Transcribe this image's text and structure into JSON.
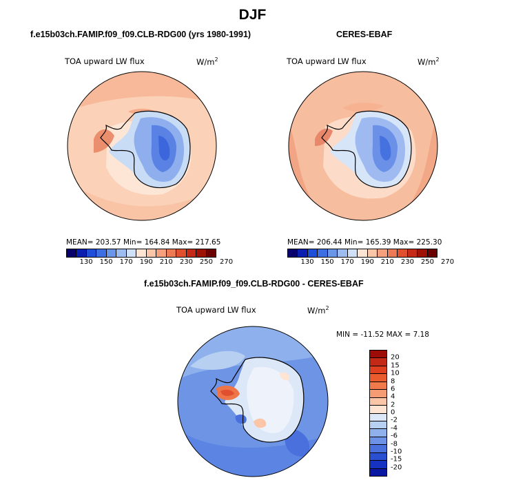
{
  "title": "DJF",
  "panels": {
    "model": {
      "header": "f.e15b03ch.FAMIP.f09_f09.CLB-RDG00 (yrs 1980-1991)",
      "field": "TOA upward LW flux",
      "units": "W/m",
      "units_exp": "2",
      "stats": "MEAN= 203.57   Min= 164.84   Max= 217.65"
    },
    "obs": {
      "header": "CERES-EBAF",
      "field": "TOA upward LW flux",
      "units": "W/m",
      "units_exp": "2",
      "stats": "MEAN= 206.44   Min= 165.39   Max= 225.30"
    },
    "diff": {
      "header": "f.e15b03ch.FAMIP.f09_f09.CLB-RDG00 - CERES-EBAF",
      "field": "TOA upward LW flux",
      "units": "W/m",
      "units_exp": "2",
      "stats": "MIN = -11.52  MAX =    7.18"
    }
  },
  "colorbars": {
    "abs_labels": [
      "130",
      "150",
      "170",
      "190",
      "210",
      "230",
      "250",
      "270"
    ],
    "abs_colors": [
      "#08006b",
      "#0a1fb0",
      "#1f4ed9",
      "#3d6fe3",
      "#6a96ea",
      "#9dbdf0",
      "#cfe0f7",
      "#fde4d3",
      "#fbc5a8",
      "#f49f7d",
      "#ec7a55",
      "#e0502f",
      "#c42a17",
      "#9e1206",
      "#6b0000"
    ],
    "diff_labels": [
      "20",
      "15",
      "10",
      "8",
      "6",
      "4",
      "2",
      "0",
      "-2",
      "-4",
      "-6",
      "-8",
      "-10",
      "-15",
      "-20"
    ],
    "diff_colors": [
      "#9e0c08",
      "#c42816",
      "#de4020",
      "#ea5b2e",
      "#f07a4a",
      "#f59c74",
      "#fbc5a8",
      "#fde4d3",
      "#dce8f7",
      "#b7d0f2",
      "#8fb0ec",
      "#6c91e6",
      "#4a70dd",
      "#2a4fd3",
      "#1632c2",
      "#0a18a3"
    ]
  }
}
